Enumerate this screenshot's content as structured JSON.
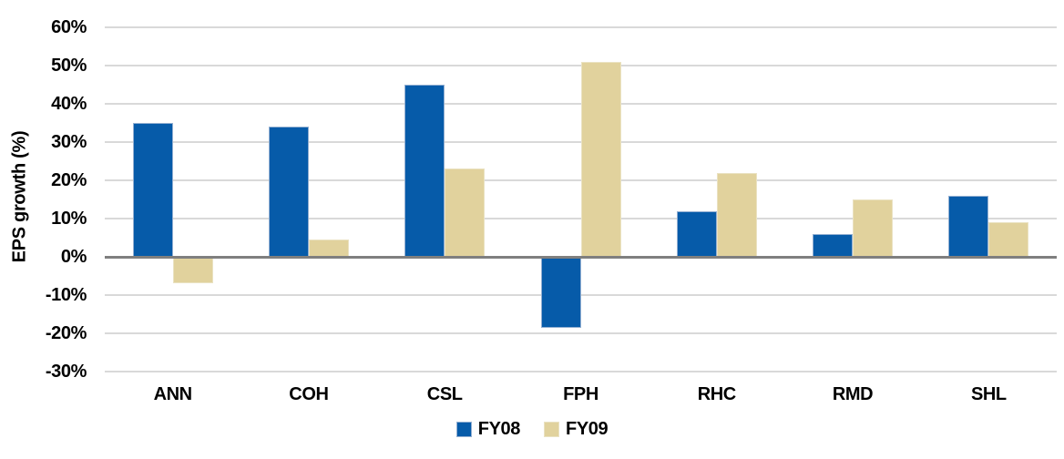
{
  "chart_data": {
    "type": "bar",
    "ylabel": "EPS growth (%)",
    "categories": [
      "ANN",
      "COH",
      "CSL",
      "FPH",
      "RHC",
      "RMD",
      "SHL"
    ],
    "series": [
      {
        "name": "FY08",
        "color": "#065BA9",
        "border_color": "#93AFD1",
        "values": [
          35,
          34,
          45,
          -18.5,
          12,
          6,
          16
        ]
      },
      {
        "name": "FY09",
        "color": "#E1D29D",
        "border_color": "#EAE2C2",
        "values": [
          -7,
          4.5,
          23,
          51,
          22,
          15,
          9
        ]
      }
    ],
    "ylim": [
      -30,
      60
    ],
    "ytick_step": 10,
    "ytick_labels": [
      "60%",
      "50%",
      "40%",
      "30%",
      "20%",
      "10%",
      "0%",
      "-10%",
      "-20%",
      "-30%"
    ],
    "grid": "horizontal",
    "legend_position": "bottom",
    "colors": {
      "grid": "#D9D9D9",
      "axis_line": "#7F7F7F",
      "text": "#000000",
      "background": "#FFFFFF"
    }
  }
}
